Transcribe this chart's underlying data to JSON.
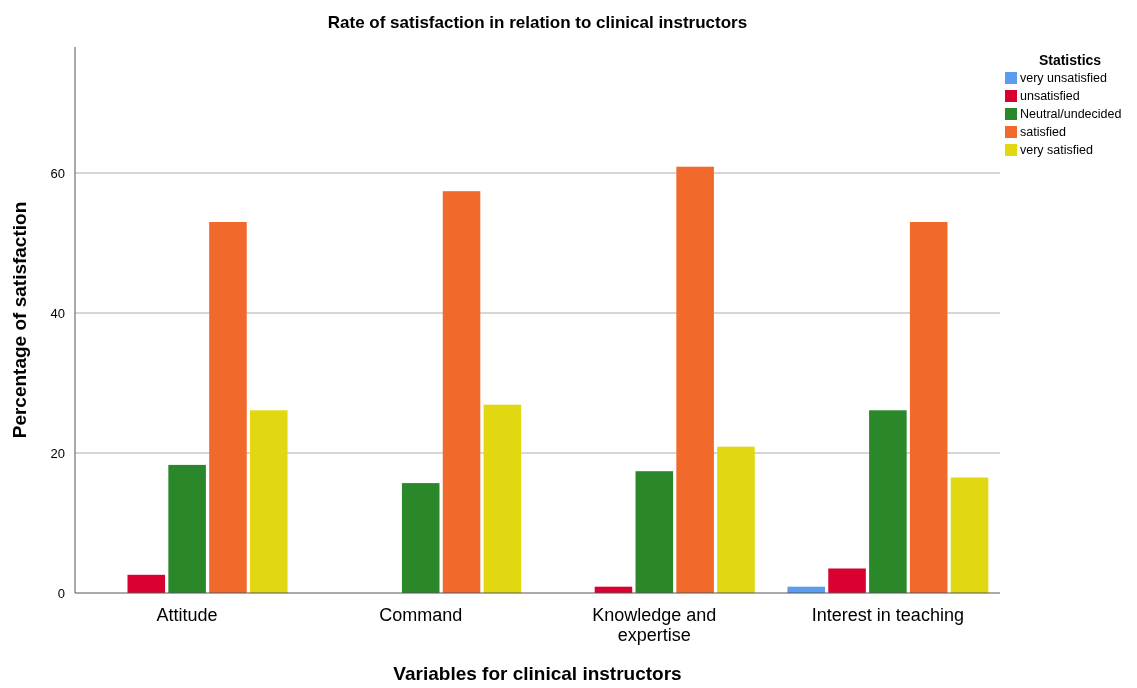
{
  "chart_data": {
    "type": "bar",
    "title": "Rate of satisfaction in relation to clinical instructors",
    "xlabel": "Variables for clinical instructors",
    "ylabel": "Percentage of satisfaction",
    "legend_title": "Statistics",
    "categories": [
      "Attitude",
      "Command",
      "Knowledge and expertise",
      "Interest in teaching"
    ],
    "series": [
      {
        "name": "very unsatisfied",
        "color": "#5b9bf0",
        "values": [
          null,
          null,
          null,
          0.9
        ]
      },
      {
        "name": "unsatisfied",
        "color": "#d90032",
        "values": [
          2.6,
          null,
          0.9,
          3.5
        ]
      },
      {
        "name": "Neutral/undecided",
        "color": "#2a882a",
        "values": [
          18.3,
          15.7,
          17.4,
          26.1
        ]
      },
      {
        "name": "satisfied",
        "color": "#f2692c",
        "values": [
          53.0,
          57.4,
          60.9,
          53.0
        ]
      },
      {
        "name": "very satisfied",
        "color": "#e2d811",
        "values": [
          26.1,
          26.9,
          20.9,
          16.5
        ]
      }
    ],
    "ylim": [
      0,
      78
    ],
    "yticks": [
      0,
      20,
      40,
      60
    ],
    "grid": "y",
    "legend": "top right"
  }
}
